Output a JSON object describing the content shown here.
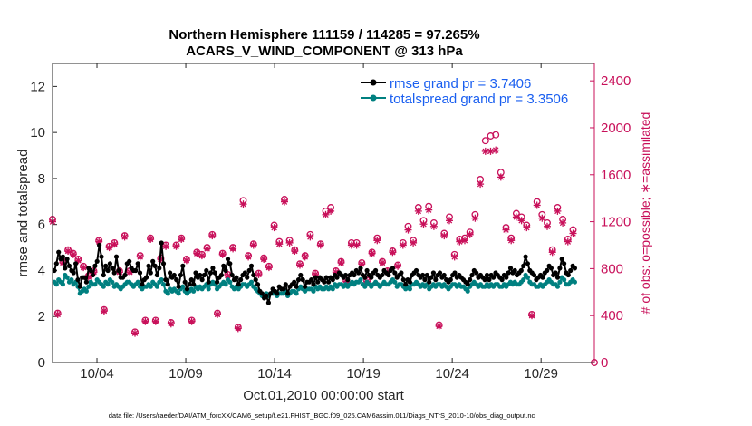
{
  "chart_data": {
    "type": "line",
    "title_line1": "Northern Hemisphere 111159 / 114285 = 97.265%",
    "title_line2": "ACARS_V_WIND_COMPONENT @ 313 hPa",
    "ylabel_left": "rmse and totalspread",
    "ylabel_right": "# of obs: o=possible; ∗=assimilated",
    "xlabel": "Oct.01,2010 00:00:00 start",
    "footer": "data file: /Users/raeder/DAI/ATM_forcXX/CAM6_setup/f.e21.FHIST_BGC.f09_025.CAM6assim.011/Diags_NTrS_2010-10/obs_diag_output.nc",
    "x_range_days": [
      1.5,
      32.0
    ],
    "ylim_left": [
      0,
      13
    ],
    "ylim_right": [
      0,
      2548
    ],
    "yticks_left": [
      0,
      2,
      4,
      6,
      8,
      10,
      12
    ],
    "yticks_right": [
      0,
      400,
      800,
      1200,
      1600,
      2000,
      2400
    ],
    "xticks": [
      {
        "day": 4,
        "label": "10/04"
      },
      {
        "day": 9,
        "label": "10/09"
      },
      {
        "day": 14,
        "label": "10/14"
      },
      {
        "day": 19,
        "label": "10/19"
      },
      {
        "day": 24,
        "label": "10/24"
      },
      {
        "day": 29,
        "label": "10/29"
      }
    ],
    "legend": [
      {
        "label": "rmse grand pr = 3.7406",
        "color": "#000000"
      },
      {
        "label": "totalspread grand pr = 3.3506",
        "color": "#008080"
      }
    ],
    "colors": {
      "rmse": "#000000",
      "spread": "#008080",
      "obs": "#c8105a",
      "legend_text": "#1a5ff0"
    },
    "series": [
      {
        "name": "rmse",
        "values": [
          4.0,
          4.3,
          4.8,
          4.5,
          4.6,
          4.1,
          4.5,
          4.2,
          4.0,
          3.9,
          4.3,
          3.6,
          3.3,
          3.7,
          3.7,
          3.5,
          4.1,
          4.0,
          3.8,
          4.2,
          4.4,
          5.1,
          4.6,
          3.8,
          4.2,
          4.0,
          4.3,
          4.1,
          3.9,
          4.6,
          4.0,
          3.7,
          3.7,
          3.8,
          4.3,
          4.4,
          4.1,
          4.0,
          4.0,
          4.3,
          3.9,
          3.4,
          3.6,
          3.7,
          4.2,
          3.9,
          4.4,
          4.2,
          3.8,
          4.1,
          5.2,
          4.3,
          3.6,
          3.4,
          3.9,
          3.7,
          3.8,
          3.6,
          3.3,
          3.8,
          4.2,
          3.5,
          3.2,
          3.4,
          3.6,
          3.4,
          3.9,
          3.7,
          3.8,
          3.6,
          3.8,
          4.0,
          3.5,
          3.9,
          4.1,
          3.9,
          3.5,
          3.7,
          3.8,
          4.2,
          4.0,
          4.5,
          4.3,
          3.8,
          3.6,
          3.7,
          3.4,
          3.6,
          3.8,
          3.9,
          3.7,
          4.0,
          4.2,
          3.8,
          3.6,
          3.4,
          3.1,
          3.0,
          2.8,
          2.9,
          2.6,
          3.0,
          3.2,
          3.1,
          3.0,
          3.3,
          3.2,
          3.2,
          3.4,
          3.0,
          3.3,
          3.4,
          3.5,
          3.3,
          3.6,
          3.8,
          3.6,
          3.3,
          3.5,
          3.5,
          3.6,
          3.4,
          3.7,
          3.5,
          3.7,
          3.6,
          3.5,
          3.7,
          3.5,
          3.7,
          3.6,
          3.8,
          3.7,
          3.9,
          3.8,
          3.7,
          3.8,
          3.6,
          3.8,
          3.9,
          3.8,
          4.0,
          3.9,
          4.1,
          3.8,
          3.7,
          4.0,
          3.8,
          3.7,
          3.9,
          4.0,
          3.8,
          3.7,
          3.8,
          4.0,
          3.9,
          3.8,
          4.0,
          4.1,
          3.9,
          3.7,
          3.8,
          3.9,
          3.6,
          3.4,
          3.6,
          3.5,
          3.8,
          3.9,
          4.0,
          3.8,
          3.7,
          3.8,
          3.6,
          3.8,
          3.5,
          3.7,
          3.9,
          3.6,
          3.8,
          3.9,
          3.7,
          3.8,
          3.6,
          3.5,
          3.6,
          3.8,
          3.9,
          3.7,
          3.8,
          3.7,
          3.6,
          3.5,
          3.4,
          3.6,
          3.8,
          4.0,
          3.9,
          3.7,
          3.8,
          3.7,
          3.6,
          3.8,
          3.6,
          3.8,
          3.7,
          3.9,
          3.8,
          3.7,
          3.6,
          3.8,
          3.7,
          3.9,
          4.1,
          3.9,
          4.0,
          3.8,
          3.9,
          4.0,
          4.2,
          4.6,
          4.3,
          4.0,
          3.9,
          3.8,
          3.6,
          3.7,
          3.8,
          3.7,
          3.9,
          4.0,
          4.2,
          4.1,
          3.8,
          3.9,
          3.7,
          4.1,
          4.5,
          4.3,
          3.9,
          3.8,
          4.0,
          4.2,
          4.1
        ]
      },
      {
        "name": "totalspread",
        "values": [
          3.5,
          3.4,
          3.6,
          3.5,
          3.4,
          3.8,
          3.7,
          3.5,
          3.6,
          3.4,
          3.5,
          3.3,
          3.0,
          3.1,
          3.2,
          3.1,
          3.3,
          3.5,
          3.4,
          3.4,
          3.6,
          3.5,
          3.4,
          3.3,
          3.5,
          3.4,
          3.6,
          3.5,
          3.3,
          3.4,
          3.3,
          3.2,
          3.3,
          3.4,
          3.5,
          3.5,
          3.4,
          3.3,
          3.4,
          3.5,
          3.3,
          3.2,
          3.3,
          3.3,
          3.4,
          3.3,
          3.5,
          3.4,
          3.3,
          3.5,
          3.6,
          3.4,
          3.1,
          3.0,
          3.2,
          3.1,
          3.2,
          3.1,
          3.0,
          3.2,
          3.3,
          3.1,
          3.0,
          3.1,
          3.2,
          3.1,
          3.3,
          3.2,
          3.3,
          3.2,
          3.3,
          3.4,
          3.2,
          3.4,
          3.5,
          3.4,
          3.2,
          3.3,
          3.4,
          3.5,
          3.4,
          3.6,
          3.5,
          3.3,
          3.2,
          3.3,
          3.2,
          3.3,
          3.4,
          3.4,
          3.3,
          3.4,
          3.5,
          3.3,
          3.2,
          3.1,
          3.0,
          2.9,
          2.9,
          3.0,
          2.9,
          3.0,
          3.0,
          3.0,
          2.9,
          3.0,
          3.0,
          3.0,
          3.1,
          2.9,
          3.0,
          3.1,
          3.1,
          3.0,
          3.2,
          3.3,
          3.2,
          3.1,
          3.2,
          3.2,
          3.2,
          3.1,
          3.3,
          3.2,
          3.3,
          3.2,
          3.2,
          3.3,
          3.2,
          3.3,
          3.2,
          3.4,
          3.3,
          3.4,
          3.4,
          3.3,
          3.4,
          3.3,
          3.4,
          3.5,
          3.4,
          3.5,
          3.5,
          3.6,
          3.4,
          3.3,
          3.5,
          3.4,
          3.3,
          3.4,
          3.5,
          3.4,
          3.3,
          3.4,
          3.5,
          3.4,
          3.4,
          3.5,
          3.6,
          3.5,
          3.3,
          3.4,
          3.4,
          3.3,
          3.2,
          3.3,
          3.2,
          3.4,
          3.4,
          3.5,
          3.4,
          3.3,
          3.4,
          3.3,
          3.4,
          3.2,
          3.3,
          3.4,
          3.3,
          3.4,
          3.4,
          3.3,
          3.4,
          3.3,
          3.2,
          3.3,
          3.4,
          3.4,
          3.3,
          3.4,
          3.3,
          3.3,
          3.2,
          3.1,
          3.3,
          3.4,
          3.5,
          3.4,
          3.3,
          3.4,
          3.3,
          3.3,
          3.4,
          3.3,
          3.4,
          3.3,
          3.4,
          3.4,
          3.3,
          3.3,
          3.4,
          3.3,
          3.4,
          3.5,
          3.4,
          3.5,
          3.4,
          3.4,
          3.5,
          3.6,
          3.8,
          3.7,
          3.5,
          3.4,
          3.4,
          3.3,
          3.3,
          3.4,
          3.3,
          3.4,
          3.5,
          3.6,
          3.5,
          3.4,
          3.4,
          3.3,
          3.5,
          3.7,
          3.6,
          3.4,
          3.4,
          3.5,
          3.6,
          3.5
        ]
      },
      {
        "name": "obs_possible",
        "values": [
          1220,
          420,
          860,
          960,
          930,
          880,
          820,
          740,
          780,
          1040,
          450,
          990,
          1020,
          780,
          1080,
          780,
          260,
          910,
          360,
          1060,
          360,
          890,
          1000,
          340,
          1000,
          1060,
          880,
          360,
          940,
          920,
          980,
          1090,
          420,
          930,
          750,
          980,
          300,
          1380,
          910,
          1010,
          760,
          890,
          820,
          1170,
          1030,
          1390,
          1040,
          960,
          840,
          910,
          1090,
          760,
          1010,
          1290,
          1320,
          780,
          860,
          700,
          1020,
          1020,
          850,
          700,
          940,
          1060,
          860,
          780,
          950,
          830,
          1020,
          1160,
          1040,
          1320,
          1210,
          1330,
          1190,
          320,
          1100,
          1240,
          920,
          1050,
          1060,
          1110,
          1260,
          1560,
          1890,
          1930,
          1940,
          1620,
          1150,
          1060,
          1270,
          1240,
          1170,
          410,
          1370,
          1260,
          1190,
          960,
          1320,
          1220,
          1050,
          1130
        ]
      },
      {
        "name": "obs_assimilated",
        "values": [
          1200,
          410,
          850,
          950,
          920,
          870,
          810,
          730,
          770,
          1030,
          440,
          980,
          1010,
          770,
          1070,
          770,
          250,
          900,
          350,
          1050,
          350,
          880,
          990,
          330,
          990,
          1050,
          870,
          350,
          930,
          910,
          970,
          1080,
          410,
          920,
          740,
          970,
          290,
          1350,
          900,
          1000,
          750,
          880,
          810,
          1150,
          1010,
          1370,
          1020,
          950,
          830,
          900,
          1070,
          750,
          1000,
          1260,
          1290,
          770,
          850,
          690,
          1000,
          1000,
          840,
          690,
          930,
          1040,
          850,
          770,
          940,
          820,
          1000,
          1130,
          1020,
          1290,
          1180,
          1300,
          1160,
          310,
          1080,
          1210,
          900,
          1030,
          1040,
          1090,
          1230,
          1520,
          1800,
          1800,
          1810,
          1580,
          1130,
          1040,
          1240,
          1210,
          1150,
          400,
          1340,
          1230,
          1160,
          940,
          1290,
          1190,
          1030,
          1100
        ]
      }
    ]
  }
}
